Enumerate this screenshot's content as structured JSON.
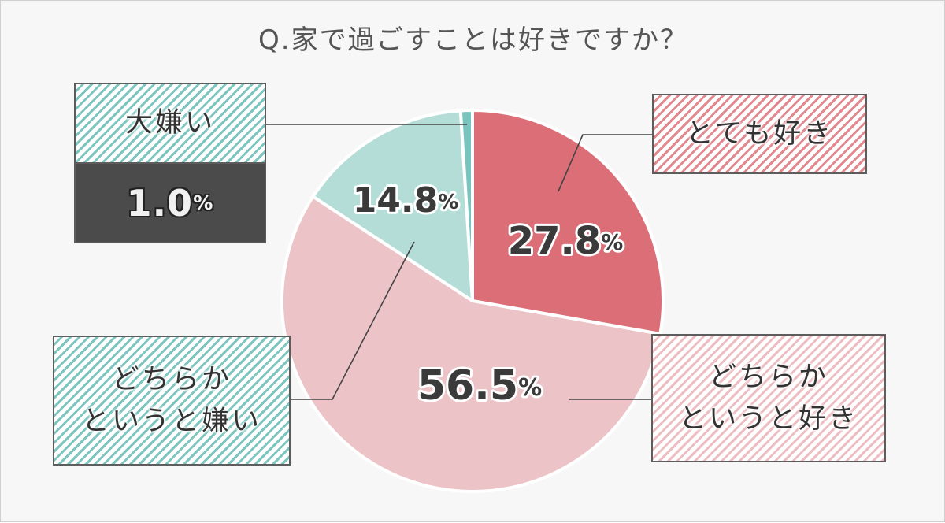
{
  "title": "Q.家で過ごすことは好きですか？",
  "colors": {
    "love": "#dc6e78",
    "like": "#ecc3c6",
    "dislike": "#b4ddd8",
    "hate": "#79c4be",
    "text": "#3a3a3a"
  },
  "chart_data": {
    "type": "pie",
    "title": "Q.家で過ごすことは好きですか？",
    "start": "12 o'clock, clockwise",
    "slices": [
      {
        "label": "とても好き",
        "value": 27.8,
        "display": "27.8"
      },
      {
        "label": "どちらかというと好き",
        "value": 56.5,
        "display": "56.5"
      },
      {
        "label": "どちらかというと嫌い",
        "value": 14.8,
        "display": "14.8"
      },
      {
        "label": "大嫌い",
        "value": 1.0,
        "display": "1.0"
      }
    ],
    "unit": "%"
  },
  "callouts": {
    "love": "とても好き",
    "like_line1": "どちらか",
    "like_line2": "というと好き",
    "dislike_line1": "どちらか",
    "dislike_line2": "というと嫌い",
    "hate": "大嫌い",
    "hate_pct": "1.0",
    "percent_sign": "%"
  }
}
